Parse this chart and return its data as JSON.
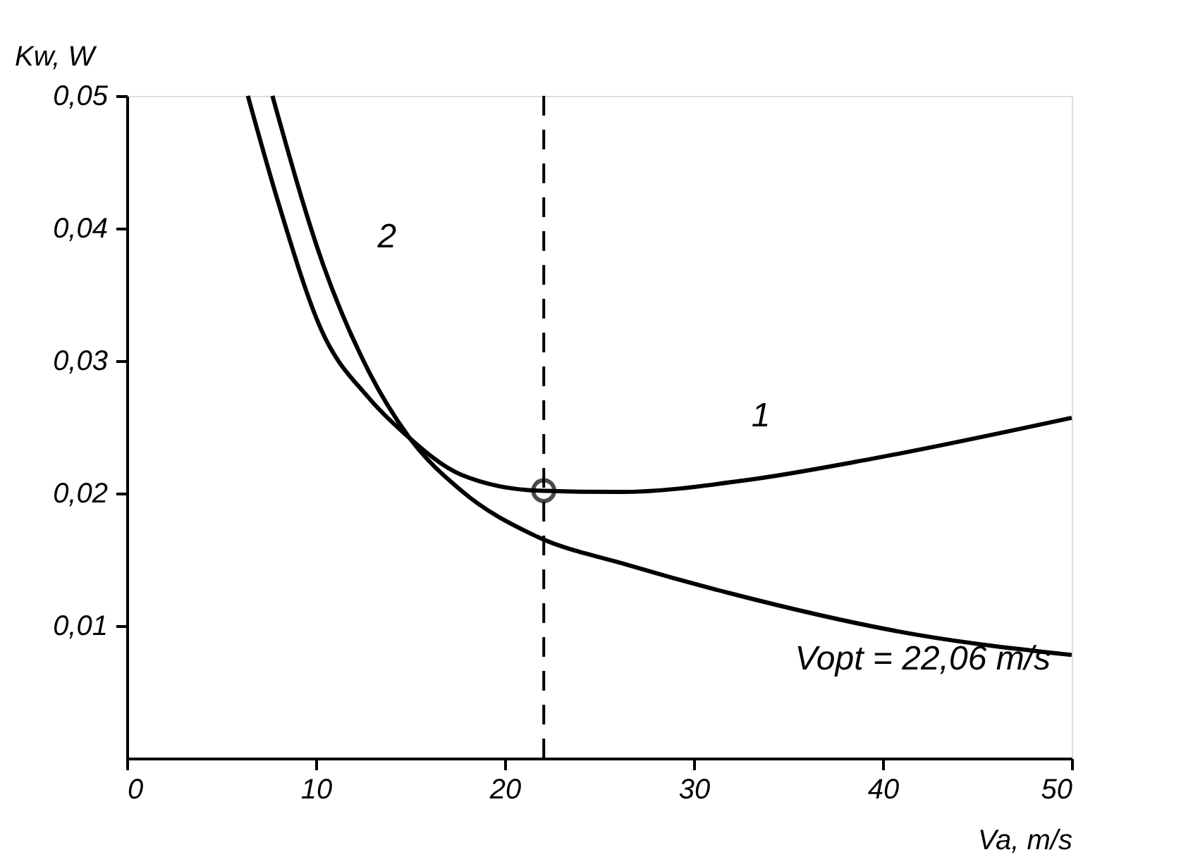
{
  "chart_data": {
    "type": "line",
    "xlabel": "Va, m/s",
    "ylabel": "Kw, W",
    "xlim": [
      0,
      50
    ],
    "ylim": [
      0,
      0.05
    ],
    "xticks": [
      0,
      10,
      20,
      30,
      40,
      50
    ],
    "yticks": [
      {
        "value": 0.01,
        "label": "0,01"
      },
      {
        "value": 0.02,
        "label": "0,02"
      },
      {
        "value": 0.03,
        "label": "0,03"
      },
      {
        "value": 0.04,
        "label": "0,04"
      },
      {
        "value": 0.05,
        "label": "0,05"
      }
    ],
    "grid": false,
    "legend": false,
    "marker": "none",
    "line_style": "solid",
    "series": [
      {
        "name": "1",
        "color": "#000000",
        "x": [
          6.4,
          8.0,
          10.3,
          12.8,
          14.7,
          17.7,
          21.8,
          26.1,
          32.8,
          39.4,
          50
        ],
        "values": [
          0.05,
          0.042,
          0.0323,
          0.0272,
          0.0245,
          0.0214,
          0.0202,
          0.0201,
          0.021,
          0.0226,
          0.0257
        ]
      },
      {
        "name": "2",
        "color": "#000000",
        "x": [
          7.7,
          10.4,
          12.8,
          14.9,
          17.7,
          21.6,
          26.5,
          31.8,
          41.9,
          50
        ],
        "values": [
          0.05,
          0.0372,
          0.0292,
          0.0243,
          0.0202,
          0.0168,
          0.0146,
          0.0125,
          0.0093,
          0.0078
        ]
      },
      {
        "type": "scatter",
        "marker": "circle",
        "color": "#000000",
        "x": [
          22.06
        ],
        "values": [
          0.0202
        ]
      }
    ],
    "ref_lines": [
      {
        "axis": "x",
        "value": 22.06,
        "line_style": "dashed",
        "color": "#000000"
      }
    ],
    "annotations": [
      "Vopt = 22,06 m/s"
    ]
  }
}
